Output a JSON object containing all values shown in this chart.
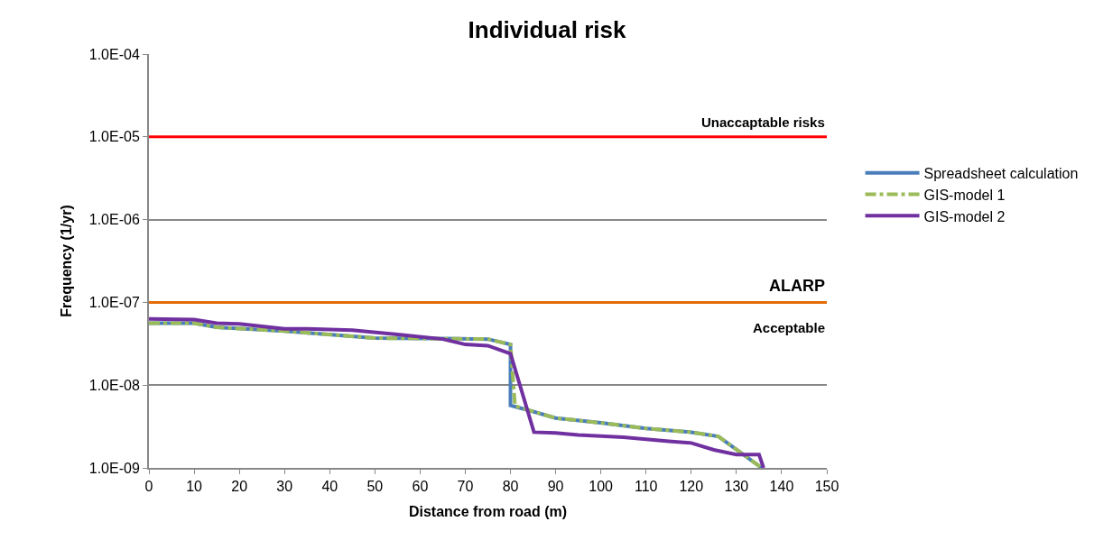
{
  "chart_data": {
    "type": "line",
    "title": "Individual risk",
    "xlabel": "Distance from road (m)",
    "ylabel": "Frequency (1/yr)",
    "log": "y",
    "grid": "y",
    "legend": "right",
    "xlim": [
      0,
      150
    ],
    "xticks": [
      0,
      10,
      20,
      30,
      40,
      50,
      60,
      70,
      80,
      90,
      100,
      110,
      120,
      130,
      140,
      150
    ],
    "ylim": [
      1e-09,
      0.0001
    ],
    "yticks": [
      {
        "value": 1e-09,
        "label": "1.0E-09"
      },
      {
        "value": 1e-08,
        "label": "1.0E-08"
      },
      {
        "value": 1e-07,
        "label": "1.0E-07"
      },
      {
        "value": 1e-06,
        "label": "1.0E-06"
      },
      {
        "value": 1e-05,
        "label": "1.0E-05"
      },
      {
        "value": 0.0001,
        "label": "1.0E-04"
      }
    ],
    "series": [
      {
        "name": "Spreadsheet calculation",
        "color": "#4a7ebb",
        "line_style": "solid",
        "x": [
          0,
          10,
          15,
          30,
          50,
          75,
          80,
          80,
          85,
          90,
          100,
          110,
          120,
          126,
          135.6
        ],
        "values": [
          5.6e-08,
          5.6e-08,
          5e-08,
          4.5e-08,
          3.7e-08,
          3.6e-08,
          3.1e-08,
          5.7e-09,
          4.8e-09,
          4e-09,
          3.5e-09,
          3e-09,
          2.7e-09,
          2.4e-09,
          1e-09
        ]
      },
      {
        "name": "GIS-model 1",
        "color": "#9bbb59",
        "line_style": "dashed",
        "x": [
          0,
          10,
          15,
          30,
          50,
          75,
          80,
          81,
          85,
          90,
          100,
          110,
          120,
          126,
          135.6
        ],
        "values": [
          5.6e-08,
          5.6e-08,
          5e-08,
          4.5e-08,
          3.7e-08,
          3.6e-08,
          3.1e-08,
          5.6e-09,
          4.8e-09,
          4e-09,
          3.5e-09,
          3e-09,
          2.7e-09,
          2.4e-09,
          1e-09
        ]
      },
      {
        "name": "GIS-model 2",
        "color": "#7030a0",
        "line_style": "solid",
        "x": [
          0,
          10,
          15,
          20,
          30,
          35,
          45,
          55,
          65,
          70,
          75,
          80,
          85.2,
          90,
          95,
          105,
          115,
          120,
          125,
          130,
          135,
          136
        ],
        "values": [
          6.3e-08,
          6.2e-08,
          5.6e-08,
          5.5e-08,
          4.8e-08,
          4.8e-08,
          4.6e-08,
          4.1e-08,
          3.6e-08,
          3.1e-08,
          3e-08,
          2.4e-08,
          2.7e-09,
          2.65e-09,
          2.5e-09,
          2.35e-09,
          2.1e-09,
          2e-09,
          1.65e-09,
          1.45e-09,
          1.45e-09,
          1e-09
        ]
      }
    ],
    "ref_lines": [
      {
        "axis": "y",
        "value": 1e-05,
        "label": "Unaccaptable risks",
        "color": "#ff0000"
      },
      {
        "axis": "y",
        "value": 1e-07,
        "label": "ALARP",
        "color": "#e36c09"
      }
    ],
    "annotations": [
      "Acceptable"
    ]
  }
}
